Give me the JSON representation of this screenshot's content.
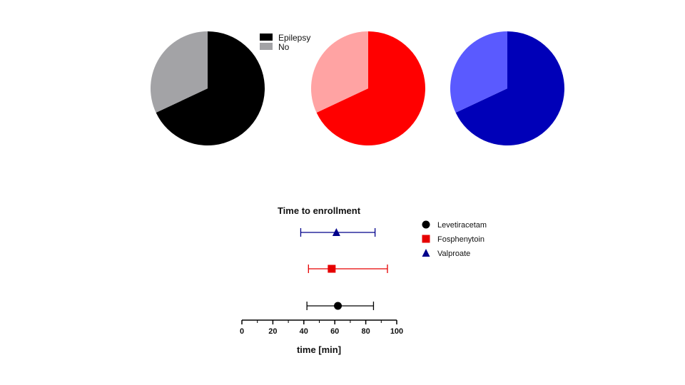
{
  "chart_data": [
    {
      "type": "pie",
      "title": "",
      "legend": {
        "placement": "top-right",
        "entries": [
          "Epilepsy",
          "No"
        ]
      },
      "slices": [
        {
          "label": "Epilepsy",
          "value": 68,
          "color": "#000000"
        },
        {
          "label": "No",
          "value": 32,
          "color": "#a3a3a6"
        }
      ]
    },
    {
      "type": "pie",
      "title": "",
      "slices": [
        {
          "label": "Epilepsy",
          "value": 68,
          "color": "#ff0000"
        },
        {
          "label": "No",
          "value": 32,
          "color": "#ffa3a3"
        }
      ]
    },
    {
      "type": "pie",
      "title": "",
      "slices": [
        {
          "label": "Epilepsy",
          "value": 68,
          "color": "#0000b8"
        },
        {
          "label": "No",
          "value": 32,
          "color": "#5a5aff"
        }
      ]
    },
    {
      "type": "scatter",
      "subtype": "forest-plot",
      "title": "Time to enrollment",
      "xlabel": "time [min]",
      "xlim": [
        0,
        100
      ],
      "xticks": [
        "0",
        "20",
        "40",
        "60",
        "80",
        "100"
      ],
      "legend": {
        "placement": "right"
      },
      "series": [
        {
          "name": "Levetiracetam",
          "marker": "circle",
          "color": "#000000",
          "point": 62,
          "low": 42,
          "high": 85
        },
        {
          "name": "Fosphenytoin",
          "marker": "square",
          "color": "#e60000",
          "point": 58,
          "low": 43,
          "high": 94
        },
        {
          "name": "Valproate",
          "marker": "triangle",
          "color": "#00008b",
          "point": 61,
          "low": 38,
          "high": 86
        }
      ]
    }
  ]
}
